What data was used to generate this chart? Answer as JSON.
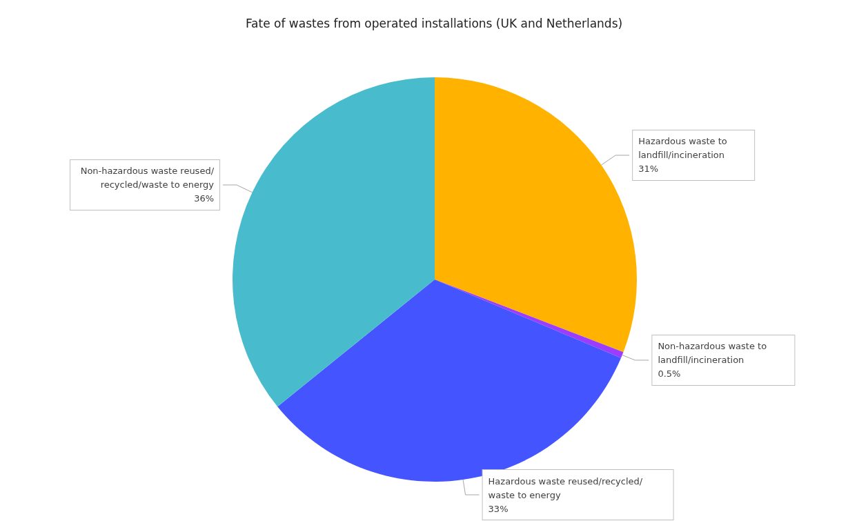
{
  "chart_data": {
    "type": "pie",
    "title": "Fate of wastes from operated installations (UK and Netherlands)",
    "categories": [
      "Hazardous waste to landfill/incineration",
      "Non-hazardous waste to landfill/incineration",
      "Hazardous waste reused/recycled/waste to energy",
      "Non-hazardous waste reused/recycled/waste to energy"
    ],
    "values": [
      31,
      0.5,
      33,
      36
    ],
    "value_labels": [
      "31%",
      "0.5%",
      "33%",
      "36%"
    ],
    "colors": [
      "#ffb300",
      "#9b3cff",
      "#4455ff",
      "#48bccc"
    ],
    "legend": false
  }
}
